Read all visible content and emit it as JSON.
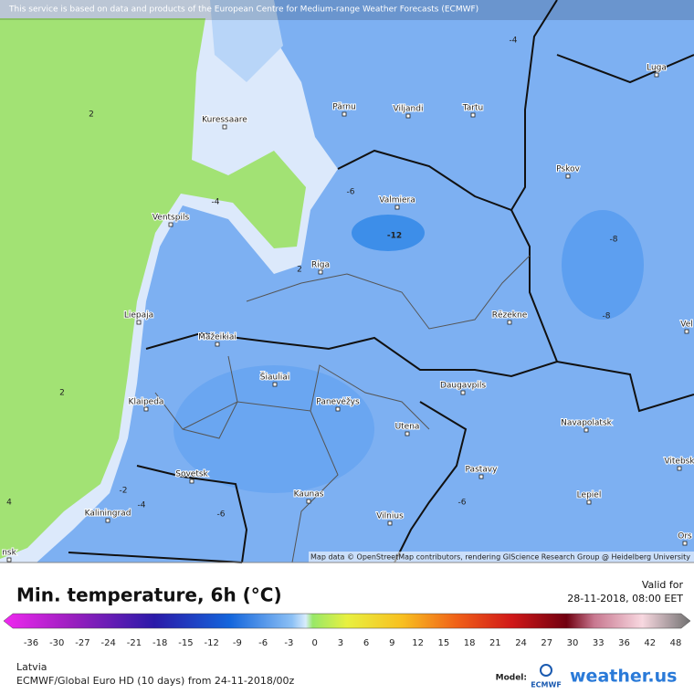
{
  "banner": "This service is based on data and products of the European Centre for Medium-range Weather Forecasts (ECMWF)",
  "attribution": "Map data © OpenStreetMap contributors, rendering GIScience Research Group @ Heidelberg University",
  "cities": [
    "Kuressaare",
    "Pärnu",
    "Viljandi",
    "Tartu",
    "Luga",
    "Pskov",
    "Valmiera",
    "Ventspils",
    "Riga",
    "Liepaja",
    "Rēzekne",
    "Mažeikiai",
    "Šiauliai",
    "Klaipeda",
    "Panevėžys",
    "Daugavpils",
    "Utena",
    "Navapolatsk",
    "Vitebsk",
    "Sovetsk",
    "Kaunas",
    "Pastavy",
    "Lepiel",
    "Kaliningrad",
    "Vilnius",
    "Vel",
    "Ors",
    "nsk"
  ],
  "contour_labels": [
    2,
    -4,
    -6,
    -12,
    2,
    -8,
    -8,
    2,
    -2,
    -4,
    -6,
    -6,
    4,
    -4
  ],
  "legend": {
    "title": "Min. temperature, 6h (°C)",
    "valid_label": "Valid for",
    "valid_time": "28-11-2018, 08:00 EET",
    "ticks": [
      -36,
      -30,
      -27,
      -24,
      -21,
      -18,
      -15,
      -12,
      -9,
      -6,
      -3,
      0,
      3,
      6,
      9,
      12,
      15,
      18,
      21,
      24,
      27,
      30,
      33,
      36,
      42,
      48
    ]
  },
  "footer": {
    "region": "Latvia",
    "model_run": "ECMWF/Global Euro HD (10 days) from 24-11-2018/00z",
    "model_label": "Model:",
    "model_name": "ECMWF",
    "brand": "weather.us"
  }
}
